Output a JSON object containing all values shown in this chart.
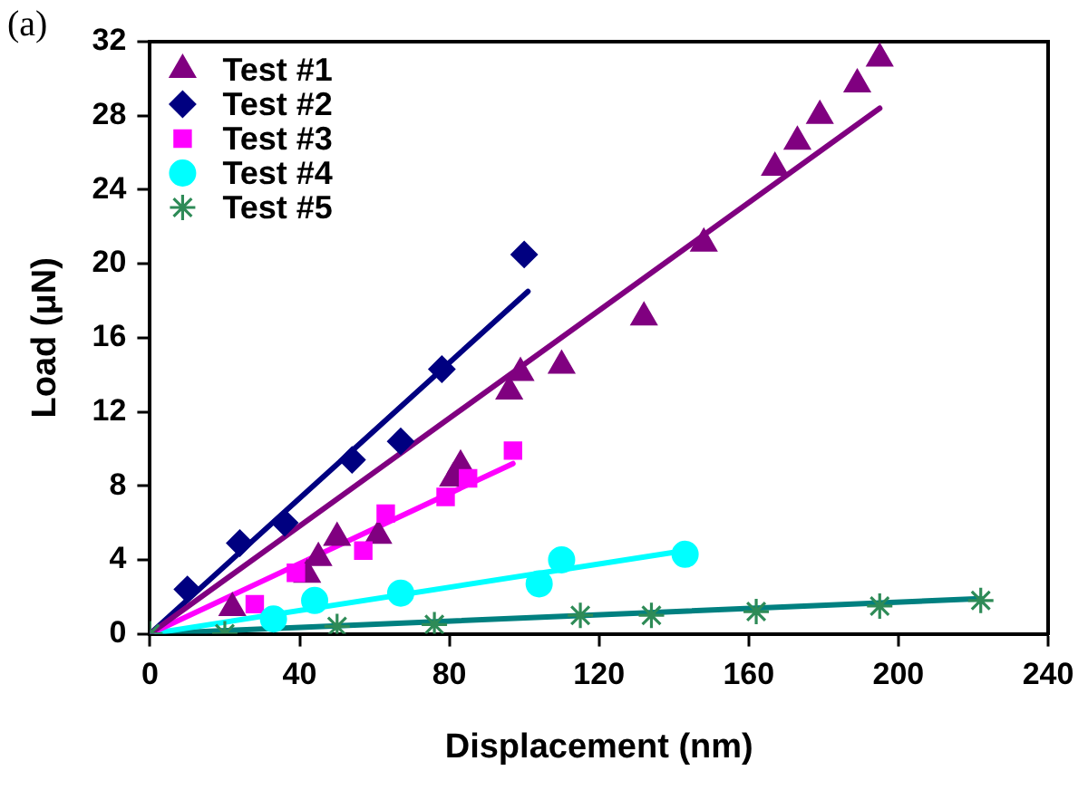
{
  "chart_data": {
    "type": "scatter",
    "xlabel": "Displacement (nm)",
    "ylabel": "Load (μN)",
    "annotations": [
      "(a)"
    ],
    "xlim": [
      0,
      240
    ],
    "xticks": [
      0,
      40,
      80,
      120,
      160,
      200,
      240
    ],
    "ylim": [
      0,
      32
    ],
    "yticks": [
      0,
      4,
      8,
      12,
      16,
      20,
      24,
      28,
      32
    ],
    "grid": false,
    "legend": "top left",
    "series": [
      {
        "name": "Test #1",
        "color": "#800080",
        "marker": "triangle",
        "x": [
          22,
          42,
          45,
          50,
          61,
          81,
          83,
          96,
          99,
          110,
          132,
          148,
          167,
          173,
          179,
          189,
          195
        ],
        "values": [
          1.4,
          3.2,
          4.1,
          5.2,
          5.3,
          8.4,
          9.1,
          13.1,
          14.1,
          14.5,
          17.1,
          21.1,
          25.2,
          26.6,
          28.0,
          29.7,
          31.1
        ]
      },
      {
        "name": "Test #2",
        "color": "#000080",
        "marker": "diamond",
        "x": [
          10,
          24,
          36,
          54,
          67,
          78,
          100
        ],
        "values": [
          2.4,
          4.9,
          6.0,
          9.4,
          10.4,
          14.3,
          20.5
        ]
      },
      {
        "name": "Test #3",
        "color": "#ff00ff",
        "marker": "square",
        "x": [
          28,
          39,
          57,
          63,
          79,
          85,
          97
        ],
        "values": [
          1.6,
          3.3,
          4.5,
          6.5,
          7.4,
          8.4,
          9.9
        ]
      },
      {
        "name": "Test #4",
        "color": "#00ffff",
        "marker": "circle",
        "x": [
          33,
          44,
          67,
          104,
          110,
          143
        ],
        "values": [
          0.8,
          1.8,
          2.2,
          2.7,
          4.0,
          4.3
        ]
      },
      {
        "name": "Test #5",
        "color": "#2e8b57",
        "marker": "cross",
        "x": [
          0,
          20,
          50,
          76,
          115,
          134,
          162,
          195,
          222
        ],
        "values": [
          0,
          0,
          0.4,
          0.5,
          1.0,
          1.0,
          1.2,
          1.5,
          1.8
        ]
      },
      {
        "type": "line",
        "color": "#800080",
        "marker": "none",
        "x": [
          0,
          195
        ],
        "values": [
          0,
          28.4
        ]
      },
      {
        "type": "line",
        "color": "#000080",
        "marker": "none",
        "x": [
          0,
          101
        ],
        "values": [
          0,
          18.5
        ]
      },
      {
        "type": "line",
        "color": "#ff00ff",
        "marker": "none",
        "x": [
          0,
          97
        ],
        "values": [
          0,
          9.2
        ]
      },
      {
        "type": "line",
        "color": "#00ffff",
        "marker": "none",
        "x": [
          0,
          143
        ],
        "values": [
          0,
          4.5
        ]
      },
      {
        "type": "line",
        "color": "#008080",
        "marker": "none",
        "x": [
          0,
          222
        ],
        "values": [
          0,
          1.9
        ]
      }
    ]
  }
}
